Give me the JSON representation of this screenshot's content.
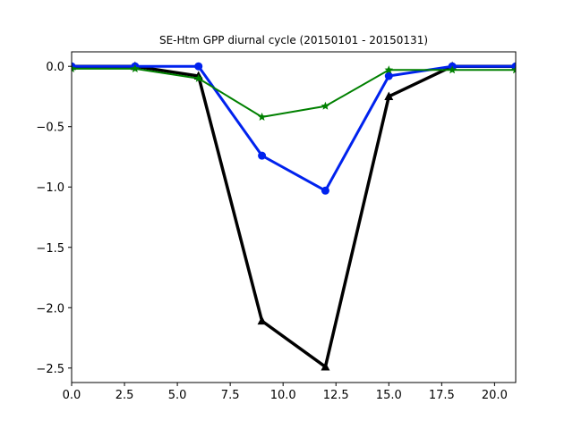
{
  "chart_data": {
    "type": "line",
    "title": "SE-Htm GPP diurnal cycle (20150101 - 20150131)",
    "xlabel": "",
    "ylabel": "",
    "xlim": [
      0,
      21
    ],
    "ylim": [
      -2.62,
      0.12
    ],
    "x_ticks": [
      0.0,
      2.5,
      5.0,
      7.5,
      10.0,
      12.5,
      15.0,
      17.5,
      20.0
    ],
    "x_tick_labels": [
      "0.0",
      "2.5",
      "5.0",
      "7.5",
      "10.0",
      "12.5",
      "15.0",
      "17.5",
      "20.0"
    ],
    "y_ticks": [
      0.0,
      -0.5,
      -1.0,
      -1.5,
      -2.0,
      -2.5
    ],
    "y_tick_labels": [
      "0.0",
      "−0.5",
      "−1.0",
      "−1.5",
      "−2.0",
      "−2.5"
    ],
    "grid": false,
    "series": [
      {
        "color": "#000000",
        "marker": "triangle",
        "x": [
          0,
          3,
          6,
          9,
          12,
          15,
          18,
          21
        ],
        "values": [
          0.0,
          0.0,
          -0.08,
          -2.11,
          -2.49,
          -0.25,
          0.0,
          0.0
        ]
      },
      {
        "color": "#0022ee",
        "marker": "circle",
        "x": [
          0,
          3,
          6,
          9,
          12,
          15,
          18,
          21
        ],
        "values": [
          0.0,
          0.0,
          0.0,
          -0.74,
          -1.03,
          -0.08,
          0.0,
          0.0
        ]
      },
      {
        "color": "#008000",
        "marker": "star",
        "x": [
          0,
          3,
          6,
          9,
          12,
          15,
          18,
          21
        ],
        "values": [
          -0.02,
          -0.02,
          -0.1,
          -0.42,
          -0.33,
          -0.03,
          -0.03,
          -0.03
        ]
      }
    ]
  }
}
